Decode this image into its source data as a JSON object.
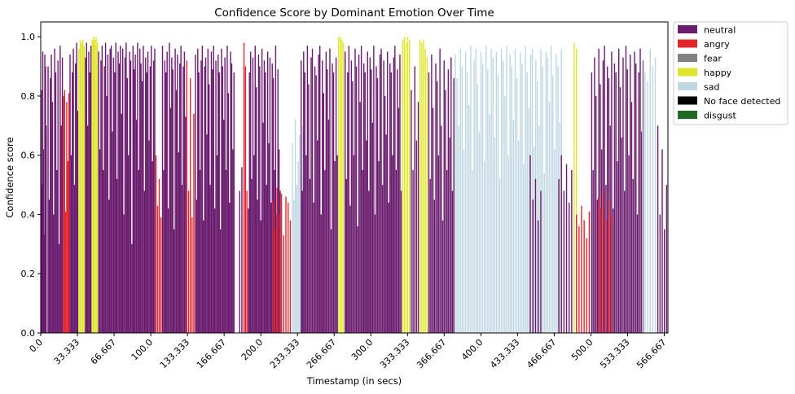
{
  "chart_data": {
    "type": "bar",
    "title": "Confidence Score by Dominant Emotion Over Time",
    "xlabel": "Timestamp (in secs)",
    "ylabel": "Confidence score",
    "xlim": [
      0,
      570
    ],
    "ylim": [
      0,
      1.05
    ],
    "x_ticks": [
      0,
      33.333,
      66.667,
      100,
      133.333,
      166.667,
      200,
      233.333,
      266.667,
      300,
      333.333,
      366.667,
      400,
      433.333,
      466.667,
      500,
      533.333,
      566.667
    ],
    "x_tick_labels": [
      "0.0",
      "33.333",
      "66.667",
      "100.0",
      "133.333",
      "166.667",
      "200.0",
      "233.333",
      "266.667",
      "300.0",
      "333.333",
      "366.667",
      "400.0",
      "433.333",
      "466.667",
      "500.0",
      "533.333",
      "566.667"
    ],
    "y_ticks": [
      0,
      0.2,
      0.4,
      0.6,
      0.8,
      1.0
    ],
    "y_tick_labels": [
      "0.0",
      "0.2",
      "0.4",
      "0.6",
      "0.8",
      "1.0"
    ],
    "legend": [
      {
        "label": "neutral",
        "color": "#6a1b6e"
      },
      {
        "label": "angry",
        "color": "#e3242b"
      },
      {
        "label": "fear",
        "color": "#808080"
      },
      {
        "label": "happy",
        "color": "#dfe52a"
      },
      {
        "label": "sad",
        "color": "#bfd7e0"
      },
      {
        "label": "No face detected",
        "color": "#000000"
      },
      {
        "label": "disgust",
        "color": "#1e6b24"
      }
    ],
    "bar_step": 0.6667,
    "bar_width": 0.65,
    "segments": [
      {
        "start": 0,
        "end": 5,
        "emotion": "neutral",
        "values": [
          0.82,
          0.5,
          0.95,
          0.62,
          0.33,
          0.94,
          0.9,
          0.7
        ]
      },
      {
        "start": 6,
        "end": 20,
        "emotion": "neutral",
        "values": [
          0.9,
          0.45,
          0.86,
          0.94,
          0.78,
          0.4,
          0.96,
          0.88,
          0.55,
          0.92,
          0.3,
          0.97,
          0.7,
          0.93
        ]
      },
      {
        "start": 20,
        "end": 26,
        "emotion": "angry",
        "values": [
          0.8,
          0.82,
          0.41,
          0.78,
          0.58,
          0.81
        ]
      },
      {
        "start": 26,
        "end": 34,
        "emotion": "neutral",
        "values": [
          0.94,
          0.6,
          0.88,
          0.96,
          0.5,
          0.91,
          0.98,
          0.75
        ]
      },
      {
        "start": 34,
        "end": 40,
        "emotion": "happy",
        "values": [
          0.96,
          0.99,
          0.98,
          0.99,
          0.97
        ]
      },
      {
        "start": 40,
        "end": 46,
        "emotion": "neutral",
        "values": [
          0.93,
          0.98,
          0.7,
          0.95,
          0.88,
          0.97
        ]
      },
      {
        "start": 46,
        "end": 52,
        "emotion": "happy",
        "values": [
          0.99,
          1.0,
          0.99,
          1.0,
          0.98
        ]
      },
      {
        "start": 52,
        "end": 104,
        "emotion": "neutral",
        "values": [
          0.95,
          0.62,
          0.92,
          0.97,
          0.55,
          0.9,
          0.98,
          0.8,
          0.94,
          0.45,
          0.96,
          0.97,
          0.68,
          0.93,
          0.88,
          0.98,
          0.52,
          0.95,
          0.91,
          0.97,
          0.74,
          0.96,
          0.4,
          0.93,
          0.98,
          0.86,
          0.6,
          0.95,
          0.92,
          0.3,
          0.97,
          0.89,
          0.94,
          0.72,
          0.98,
          0.55,
          0.96,
          0.91,
          0.85,
          0.97,
          0.48,
          0.93,
          0.88,
          0.95,
          0.65,
          0.9,
          0.97,
          0.58,
          0.92,
          0.96
        ]
      },
      {
        "start": 104,
        "end": 110,
        "emotion": "angry",
        "values": [
          0.6,
          0.43,
          0.52,
          0.39
        ]
      },
      {
        "start": 110,
        "end": 132,
        "emotion": "neutral",
        "values": [
          0.97,
          0.55,
          0.92,
          0.88,
          0.95,
          0.42,
          0.98,
          0.76,
          0.93,
          0.89,
          0.35,
          0.96,
          0.82,
          0.94,
          0.61,
          0.91,
          0.97,
          0.5,
          0.9,
          0.95,
          0.73
        ]
      },
      {
        "start": 132,
        "end": 140,
        "emotion": "angry",
        "values": [
          0.92,
          0.48,
          0.86,
          0.39,
          0.74
        ]
      },
      {
        "start": 140,
        "end": 176,
        "emotion": "neutral",
        "values": [
          0.94,
          0.45,
          0.96,
          0.88,
          0.55,
          0.92,
          0.97,
          0.38,
          0.9,
          0.93,
          0.67,
          0.96,
          0.84,
          0.5,
          0.95,
          0.89,
          0.97,
          0.42,
          0.92,
          0.6,
          0.94,
          0.88,
          0.35,
          0.96,
          0.9,
          0.72,
          0.93,
          0.55,
          0.97,
          0.81,
          0.44,
          0.95,
          0.91,
          0.62,
          0.88
        ]
      },
      {
        "start": 180,
        "end": 184,
        "emotion": "neutral",
        "values": [
          0.48,
          0.56
        ]
      },
      {
        "start": 184,
        "end": 188,
        "emotion": "angry",
        "values": [
          0.98,
          0.9,
          0.48
        ]
      },
      {
        "start": 188,
        "end": 218,
        "emotion": "neutral",
        "values": [
          0.42,
          0.88,
          0.95,
          0.52,
          0.93,
          0.6,
          0.97,
          0.83,
          0.45,
          0.94,
          0.9,
          0.38,
          0.96,
          0.71,
          0.92,
          0.88,
          0.5,
          0.95,
          0.64,
          0.93,
          0.44,
          0.91,
          0.86,
          0.55,
          0.97,
          0.4,
          0.89,
          0.62,
          0.48
        ]
      },
      {
        "start": 210,
        "end": 228,
        "emotion": "angry",
        "values": [
          0.45,
          0.35,
          0.49,
          0.4,
          0.47,
          0.33,
          0.46,
          0.44,
          0.38
        ]
      },
      {
        "start": 228,
        "end": 240,
        "emotion": "sad",
        "values": [
          0.64,
          0.45,
          0.72,
          0.5,
          0.58,
          0.67,
          0.44,
          0.7,
          0.55
        ]
      },
      {
        "start": 236,
        "end": 270,
        "emotion": "neutral",
        "values": [
          0.92,
          0.48,
          0.95,
          0.88,
          0.6,
          0.97,
          0.84,
          0.52,
          0.93,
          0.96,
          0.44,
          0.9,
          0.87,
          0.65,
          0.94,
          0.97,
          0.4,
          0.92,
          0.81,
          0.55,
          0.95,
          0.89,
          0.72,
          0.96,
          0.35,
          0.91,
          0.88,
          0.58,
          0.93,
          0.6
        ]
      },
      {
        "start": 270,
        "end": 276,
        "emotion": "happy",
        "values": [
          1.0,
          1.0,
          0.99,
          0.98
        ]
      },
      {
        "start": 276,
        "end": 328,
        "emotion": "neutral",
        "values": [
          0.95,
          0.52,
          0.88,
          0.97,
          0.43,
          0.92,
          0.85,
          0.6,
          0.96,
          0.9,
          0.36,
          0.94,
          0.78,
          0.97,
          0.55,
          0.91,
          0.88,
          0.65,
          0.95,
          0.48,
          0.93,
          0.89,
          0.71,
          0.97,
          0.4,
          0.9,
          0.86,
          0.58,
          0.94,
          0.96,
          0.5,
          0.92,
          0.8,
          0.67,
          0.95,
          0.44,
          0.91,
          0.88,
          0.6,
          0.93,
          0.97,
          0.55,
          0.89,
          0.76,
          0.94,
          0.48
        ]
      },
      {
        "start": 328,
        "end": 336,
        "emotion": "happy",
        "values": [
          0.99,
          1.0,
          0.98,
          1.0,
          0.99
        ]
      },
      {
        "start": 336,
        "end": 344,
        "emotion": "neutral",
        "values": [
          0.82,
          0.55,
          0.9,
          0.65,
          0.78
        ]
      },
      {
        "start": 344,
        "end": 352,
        "emotion": "happy",
        "values": [
          0.99,
          0.98,
          0.99,
          0.96,
          0.93
        ]
      },
      {
        "start": 352,
        "end": 376,
        "emotion": "neutral",
        "values": [
          0.88,
          0.52,
          0.94,
          0.76,
          0.45,
          0.91,
          0.85,
          0.6,
          0.96,
          0.7,
          0.38,
          0.92,
          0.82,
          0.55,
          0.89,
          0.66,
          0.93,
          0.48,
          0.86
        ]
      },
      {
        "start": 376,
        "end": 474,
        "emotion": "sad",
        "values": [
          0.94,
          0.86,
          0.7,
          0.96,
          0.9,
          0.62,
          0.95,
          0.88,
          0.77,
          0.97,
          0.55,
          0.92,
          0.96,
          0.84,
          0.68,
          0.95,
          0.91,
          0.58,
          0.97,
          0.89,
          0.74,
          0.96,
          0.93,
          0.66,
          0.95,
          0.87,
          0.52,
          0.96,
          0.92,
          0.8,
          0.97,
          0.6,
          0.94,
          0.9,
          0.72,
          0.96,
          0.86,
          0.65,
          0.95,
          0.91,
          0.57,
          0.97,
          0.88,
          0.76,
          0.94,
          0.96,
          0.63,
          0.92,
          0.85,
          0.7,
          0.96,
          0.9,
          0.54,
          0.95,
          0.93,
          0.78,
          0.97,
          0.87,
          0.62,
          0.94,
          0.9,
          0.71,
          0.96
        ]
      },
      {
        "start": 444,
        "end": 456,
        "emotion": "neutral",
        "values": [
          0.6,
          0.45,
          0.52,
          0.38,
          0.48
        ]
      },
      {
        "start": 470,
        "end": 484,
        "emotion": "neutral",
        "values": [
          0.52,
          0.6,
          0.48,
          0.57,
          0.44,
          0.55
        ]
      },
      {
        "start": 484,
        "end": 488,
        "emotion": "happy",
        "values": [
          0.98,
          0.96
        ]
      },
      {
        "start": 486,
        "end": 500,
        "emotion": "angry",
        "values": [
          0.4,
          0.36,
          0.43,
          0.38,
          0.32,
          0.41
        ]
      },
      {
        "start": 500,
        "end": 548,
        "emotion": "neutral",
        "values": [
          0.88,
          0.55,
          0.93,
          0.8,
          0.45,
          0.96,
          0.84,
          0.62,
          0.92,
          0.97,
          0.5,
          0.9,
          0.86,
          0.7,
          0.95,
          0.42,
          0.91,
          0.88,
          0.58,
          0.96,
          0.83,
          0.66,
          0.93,
          0.48,
          0.97,
          0.89,
          0.6,
          0.94,
          0.78,
          0.52,
          0.95,
          0.91,
          0.4,
          0.88,
          0.96,
          0.68,
          0.92
        ]
      },
      {
        "start": 506,
        "end": 520,
        "emotion": "angry",
        "values": [
          0.46,
          0.42,
          0.48,
          0.38,
          0.45,
          0.4
        ]
      },
      {
        "start": 546,
        "end": 560,
        "emotion": "sad",
        "values": [
          0.92,
          0.88,
          0.85,
          0.96,
          0.9,
          0.93
        ]
      },
      {
        "start": 560,
        "end": 570,
        "emotion": "neutral",
        "values": [
          0.7,
          0.4,
          0.62,
          0.35,
          0.5
        ]
      }
    ]
  }
}
